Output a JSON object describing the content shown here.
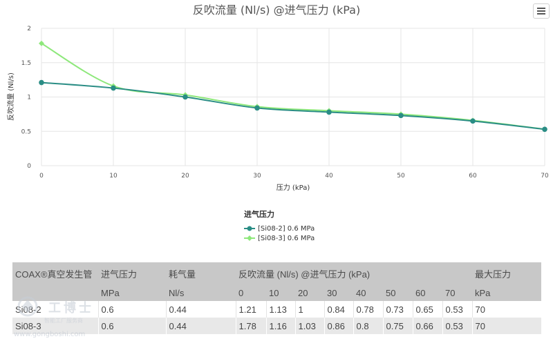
{
  "chart_data": {
    "type": "line",
    "title": "反吹流量 (Nl/s) @进气压力 (kPa)",
    "xlabel": "压力 (kPa)",
    "ylabel": "反吹流量 (Nl/s)",
    "x": [
      0,
      10,
      20,
      30,
      40,
      50,
      60,
      70
    ],
    "xlim": [
      0,
      70
    ],
    "ylim": [
      0,
      2
    ],
    "xticks": [
      "0",
      "10",
      "20",
      "30",
      "40",
      "50",
      "60",
      "70"
    ],
    "yticks": [
      "0",
      "0.5",
      "1",
      "1.5",
      "2"
    ],
    "grid": true,
    "legend_title": "进气压力",
    "legend_position": "bottom-center",
    "series": [
      {
        "name": "[Si08-2] 0.6 MPa",
        "color": "#2a8d85",
        "marker": "circle",
        "values": [
          1.21,
          1.13,
          1,
          0.84,
          0.78,
          0.73,
          0.65,
          0.53
        ]
      },
      {
        "name": "[Si08-3] 0.6 MPa",
        "color": "#8ee87b",
        "marker": "diamond",
        "values": [
          1.78,
          1.16,
          1.03,
          0.86,
          0.8,
          0.75,
          0.66,
          0.53
        ]
      }
    ]
  },
  "menu": {
    "icon": "hamburger-menu-icon"
  },
  "table": {
    "header1": [
      "COAX®真空发生管",
      "进气压力",
      "耗气量",
      "反吹流量 (Nl/s) @进气压力 (kPa)",
      "最大压力"
    ],
    "header2": [
      "",
      "MPa",
      "Nl/s",
      "0",
      "10",
      "20",
      "30",
      "40",
      "50",
      "60",
      "70",
      "kPa"
    ],
    "rows": [
      [
        "Si08-2",
        "0.6",
        "0.44",
        "1.21",
        "1.13",
        "1",
        "0.84",
        "0.78",
        "0.73",
        "0.65",
        "0.53",
        "70"
      ],
      [
        "Si08-3",
        "0.6",
        "0.44",
        "1.78",
        "1.16",
        "1.03",
        "0.86",
        "0.8",
        "0.75",
        "0.66",
        "0.53",
        "70"
      ]
    ]
  },
  "watermark": {
    "brand": "工博士",
    "tagline": "智能工厂服务商",
    "url": "www.gongboshi.com"
  }
}
